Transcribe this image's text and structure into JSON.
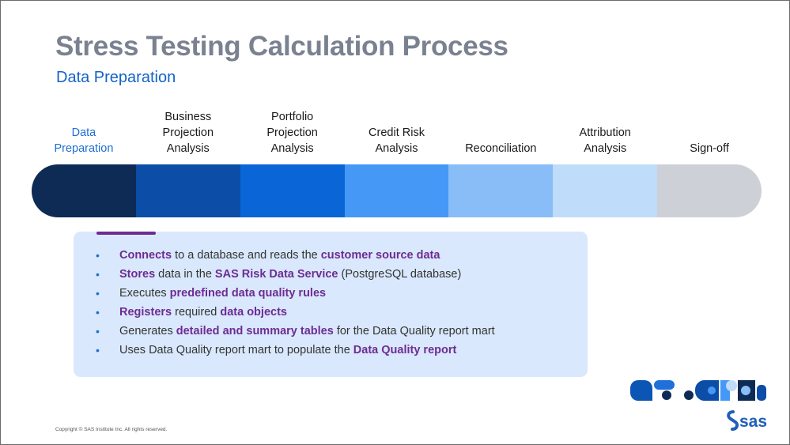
{
  "slide": {
    "title": "Stress Testing Calculation Process",
    "subtitle": "Data Preparation",
    "copyright": "Copyright © SAS Institute Inc. All rights reserved.",
    "logo_text": "sas"
  },
  "steps": [
    {
      "lines": [
        "Data",
        "Preparation"
      ],
      "active": true,
      "color": "#0d2b54"
    },
    {
      "lines": [
        "Business",
        "Projection",
        "Analysis"
      ],
      "active": false,
      "color": "#0c4da7"
    },
    {
      "lines": [
        "Portfolio",
        "Projection",
        "Analysis"
      ],
      "active": false,
      "color": "#0a66d6"
    },
    {
      "lines": [
        "Credit Risk",
        "Analysis"
      ],
      "active": false,
      "color": "#4598f5"
    },
    {
      "lines": [
        "Reconciliation"
      ],
      "active": false,
      "color": "#88bdf8"
    },
    {
      "lines": [
        "Attribution",
        "Analysis"
      ],
      "active": false,
      "color": "#bfdcfb"
    },
    {
      "lines": [
        "Sign-off"
      ],
      "active": false,
      "color": "#cdd0d6"
    }
  ],
  "details": {
    "items": [
      [
        {
          "b": "Connects"
        },
        {
          "t": " to a database and reads the "
        },
        {
          "b": "customer source data"
        }
      ],
      [
        {
          "b": "Stores"
        },
        {
          "t": " data in the "
        },
        {
          "b": "SAS Risk Data Service"
        },
        {
          "t": " (PostgreSQL database)"
        }
      ],
      [
        {
          "t": "Executes "
        },
        {
          "b": "predefined data quality rules"
        }
      ],
      [
        {
          "b": "Registers"
        },
        {
          "t": " required "
        },
        {
          "b": "data objects"
        }
      ],
      [
        {
          "t": "Generates "
        },
        {
          "b": "detailed and summary tables"
        },
        {
          "t": " for the Data Quality report mart"
        }
      ],
      [
        {
          "t": "Uses Data Quality report mart to populate the "
        },
        {
          "b": "Data Quality report"
        }
      ]
    ]
  },
  "colors": {
    "accent_purple": "#6e2c92",
    "title_gray": "#7a8190",
    "subtitle_blue": "#1363c9",
    "details_bg": "#d9e8fc"
  }
}
